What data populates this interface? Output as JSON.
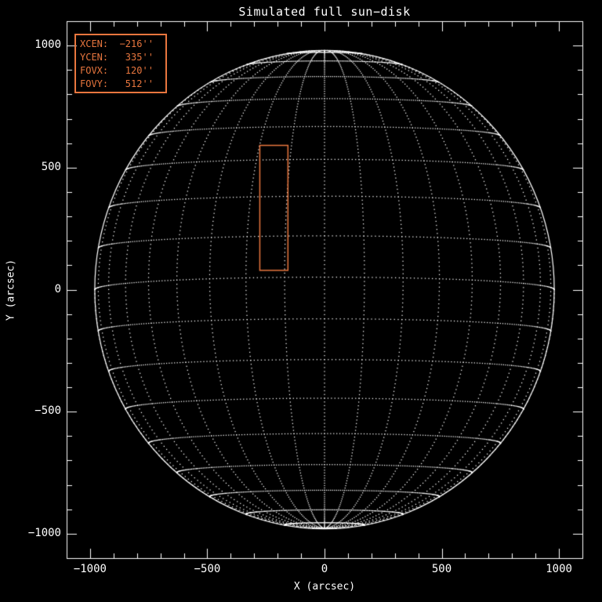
{
  "window": {
    "background_color": "#000000"
  },
  "chart_data": {
    "type": "scatter",
    "title": "Simulated full sun−disk",
    "xlabel": "X (arcsec)",
    "ylabel": "Y (arcsec)",
    "xlim": [
      -1100,
      1100
    ],
    "ylim": [
      -1100,
      1100
    ],
    "grid_on": true,
    "legend_position": "top-left",
    "x_ticks": [
      {
        "v": -1000,
        "label": "−1000"
      },
      {
        "v": -500,
        "label": "−500"
      },
      {
        "v": 0,
        "label": "0"
      },
      {
        "v": 500,
        "label": "500"
      },
      {
        "v": 1000,
        "label": "1000"
      }
    ],
    "y_ticks": [
      {
        "v": 1000,
        "label": "1000"
      },
      {
        "v": 500,
        "label": "500"
      },
      {
        "v": 0,
        "label": "0"
      },
      {
        "v": -500,
        "label": "−500"
      },
      {
        "v": -1000,
        "label": "−1000"
      }
    ],
    "minor_tick_step_arcsec": 100,
    "major_tick_step_arcsec": 500,
    "solar_disk": {
      "radius_arcsec": 980,
      "b0_tilt_deg": -3,
      "grid_step_deg": 10,
      "lat_range_deg": [
        -80,
        80
      ],
      "lon_range_deg": [
        -90,
        90
      ],
      "dot_step_deg": 1,
      "grid_style": "dotted",
      "limb_style": "solid"
    },
    "fov_box": {
      "xcen_arcsec": -216,
      "ycen_arcsec": 335,
      "fovx_arcsec": 120,
      "fovy_arcsec": 512
    },
    "annotation_lines": [
      "XCEN:  −216''",
      "YCEN:   335''",
      "FOVX:   120''",
      "FOVY:   512''"
    ],
    "colors": {
      "background": "#000000",
      "axes_and_grid": "#FFFFFF",
      "annotation_orange": "#E8763E"
    }
  }
}
